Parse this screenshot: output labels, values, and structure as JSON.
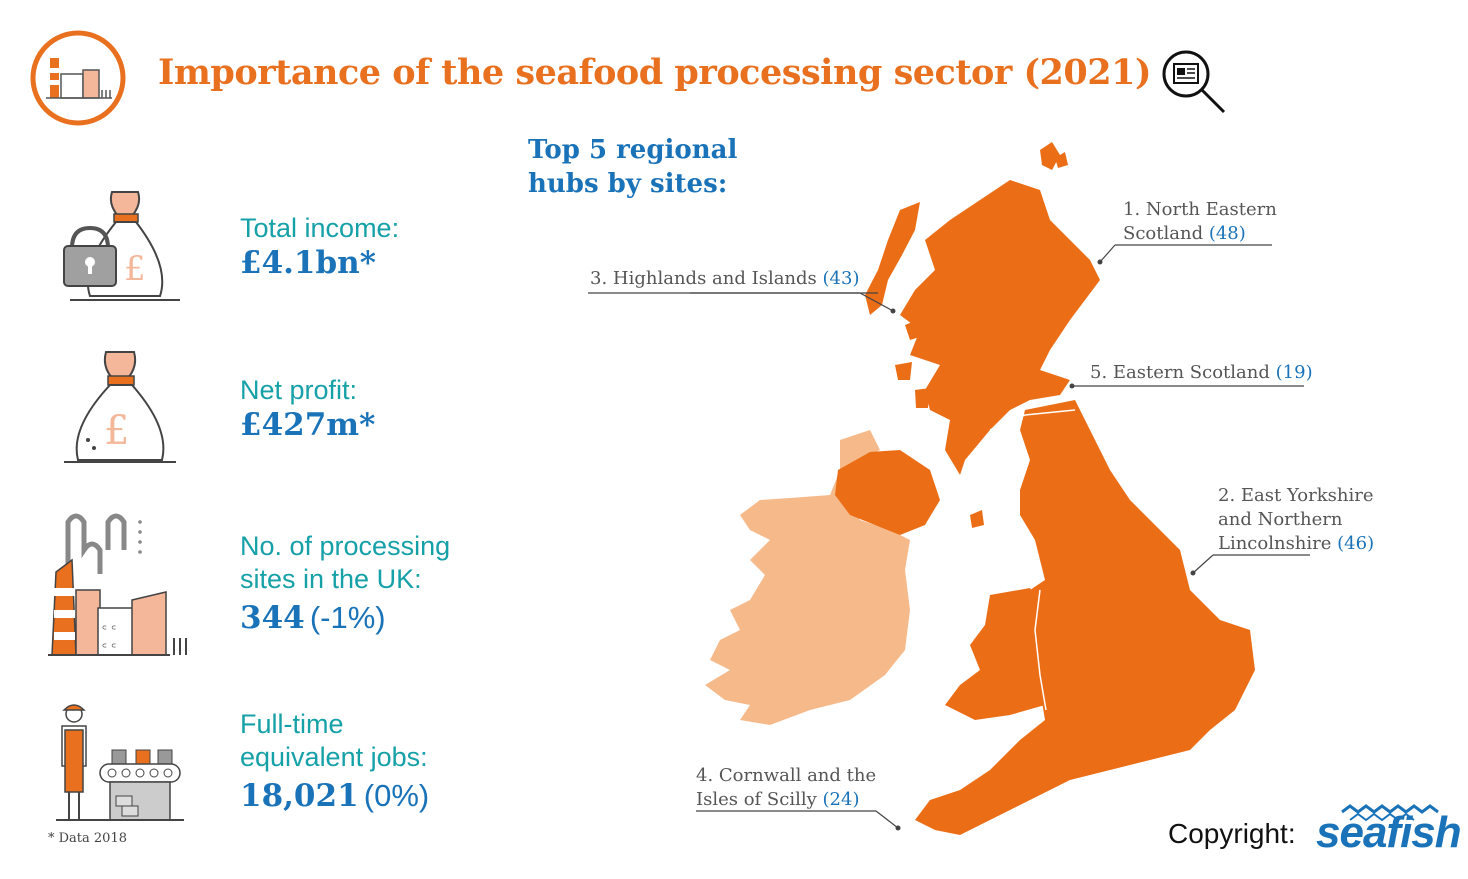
{
  "header": {
    "title": "Importance of the seafood processing sector (2021)",
    "logo_icon": "factory-icon",
    "magnifier_icon": "magnifier-newspaper-icon"
  },
  "stats": [
    {
      "icon": "money-bag-padlock-icon",
      "label_lines": [
        "Total income:"
      ],
      "value": "£4.1bn*",
      "suffix": ""
    },
    {
      "icon": "money-bag-icon",
      "label_lines": [
        "Net profit:"
      ],
      "value": "£427m*",
      "suffix": ""
    },
    {
      "icon": "factory-icon",
      "label_lines": [
        "No. of processing",
        "sites in the UK:"
      ],
      "value": "344",
      "suffix": "(-1%)"
    },
    {
      "icon": "worker-conveyor-icon",
      "label_lines": [
        "Full-time",
        "equivalent jobs:"
      ],
      "value": "18,021",
      "suffix": "(0%)"
    }
  ],
  "footnote": "* Data 2018",
  "hubs": {
    "heading_lines": [
      "Top 5 regional",
      "hubs by sites:"
    ],
    "items": [
      {
        "lines": [
          "1. North Eastern",
          "Scotland"
        ],
        "count": "(48)"
      },
      {
        "lines": [
          "2. East Yorkshire",
          "and Northern",
          "Lincolnshire"
        ],
        "count": "(46)"
      },
      {
        "lines": [
          "3. Highlands and Islands"
        ],
        "count": "(43)"
      },
      {
        "lines": [
          "4. Cornwall and the",
          "Isles of Scilly"
        ],
        "count": "(24)"
      },
      {
        "lines": [
          "5. Eastern Scotland"
        ],
        "count": "(19)"
      }
    ]
  },
  "map": {
    "uk_color": "#eb6e17",
    "ireland_color": "#f6b98a"
  },
  "footer": {
    "copyright": "Copyright:",
    "brand": "seafish"
  },
  "colors": {
    "title_orange": "#e8701f",
    "label_teal": "#16a0a8",
    "value_blue": "#1a72b8"
  }
}
